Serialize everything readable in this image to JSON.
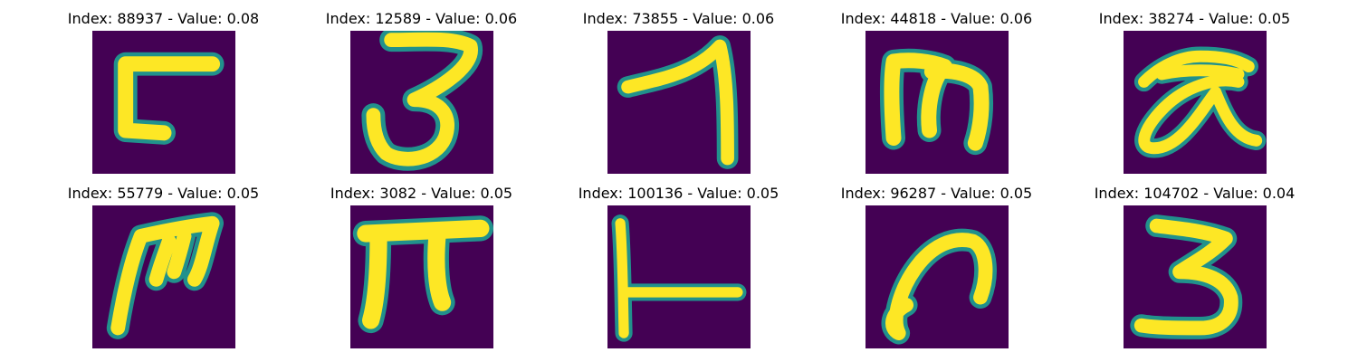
{
  "colors": {
    "background": "#440154",
    "edge": "#21918c",
    "foreground": "#fde725"
  },
  "panels": [
    {
      "title": "Index: 88937 - Value: 0.08",
      "glyph": "reversed-L-hook"
    },
    {
      "title": "Index: 12589 - Value: 0.06",
      "glyph": "three-like-curve"
    },
    {
      "title": "Index: 73855 - Value: 0.06",
      "glyph": "seven-like-stroke"
    },
    {
      "title": "Index: 44818 - Value: 0.06",
      "glyph": "m-shape"
    },
    {
      "title": "Index: 38274 - Value: 0.05",
      "glyph": "looped-alpha-shape"
    },
    {
      "title": "Index: 55779 - Value: 0.05",
      "glyph": "slanted-m-shape"
    },
    {
      "title": "Index: 3082 - Value: 0.05",
      "glyph": "pi-shape"
    },
    {
      "title": "Index: 100136 - Value: 0.05",
      "glyph": "t-bar-sideways"
    },
    {
      "title": "Index: 96287 - Value: 0.05",
      "glyph": "hook-curve"
    },
    {
      "title": "Index: 104702 - Value: 0.04",
      "glyph": "three-shape"
    }
  ]
}
